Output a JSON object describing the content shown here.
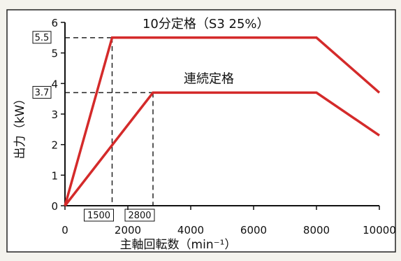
{
  "chart_data": {
    "type": "line",
    "xlabel": "主軸回転数（min⁻¹）",
    "ylabel": "出力（kW）",
    "xlim": [
      0,
      10000
    ],
    "ylim": [
      0,
      6
    ],
    "x_ticks": [
      "0",
      "2000",
      "4000",
      "6000",
      "8000",
      "10000"
    ],
    "y_ticks": [
      "0",
      "1",
      "2",
      "3",
      "4",
      "5",
      "6"
    ],
    "grid": false,
    "series": [
      {
        "name": "10分定格（S3 25%）",
        "color": "#d42a2a",
        "points": [
          [
            0,
            0
          ],
          [
            1500,
            5.5
          ],
          [
            8000,
            5.5
          ],
          [
            10000,
            3.7
          ]
        ]
      },
      {
        "name": "連続定格",
        "color": "#d42a2a",
        "points": [
          [
            0,
            0
          ],
          [
            2800,
            3.7
          ],
          [
            8000,
            3.7
          ],
          [
            10000,
            2.3
          ]
        ]
      }
    ],
    "reference_lines": [
      {
        "axis": "y",
        "value": 5.5,
        "label": "5.5",
        "to_x": 1500
      },
      {
        "axis": "y",
        "value": 3.7,
        "label": "3.7",
        "to_x": 2800
      },
      {
        "axis": "x",
        "value": 1500,
        "label": "1500",
        "to_y": 5.5
      },
      {
        "axis": "x",
        "value": 2800,
        "label": "2800",
        "to_y": 3.7
      }
    ]
  }
}
